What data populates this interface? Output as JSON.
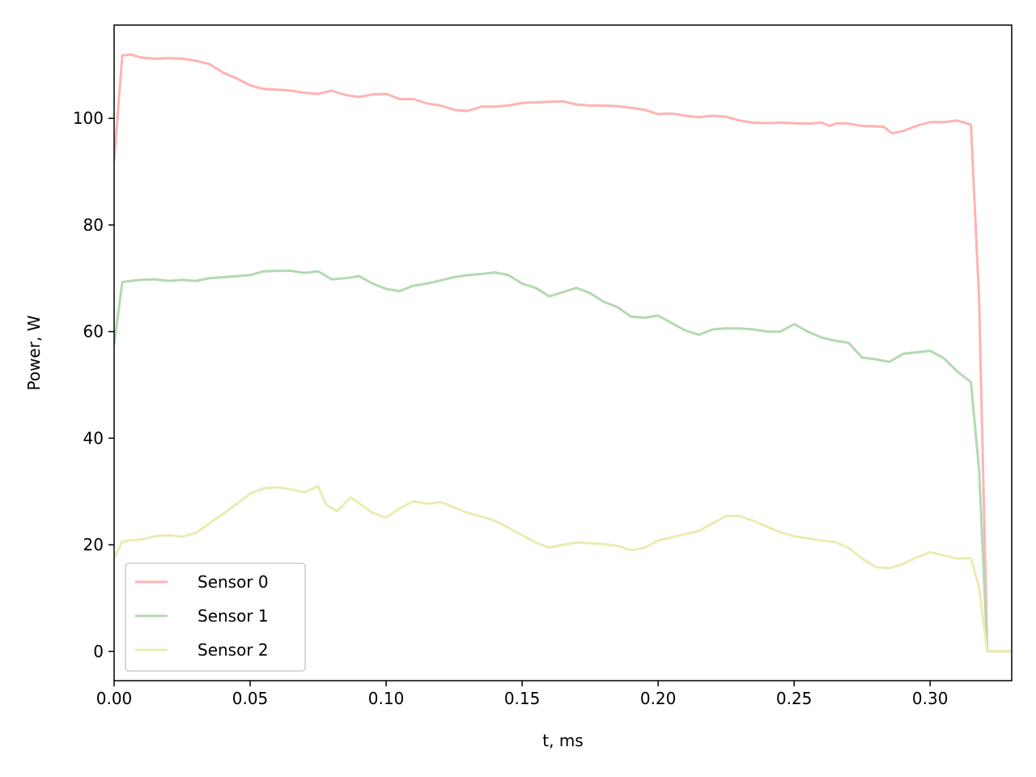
{
  "chart_data": {
    "type": "line",
    "title": "",
    "xlabel": "t, ms",
    "ylabel": "Power, W",
    "xlim": [
      0,
      0.33
    ],
    "ylim": [
      -5.5,
      117.5
    ],
    "xticks": [
      "0.00",
      "0.05",
      "0.10",
      "0.15",
      "0.20",
      "0.25",
      "0.30"
    ],
    "yticks": [
      "0",
      "20",
      "40",
      "60",
      "80",
      "100"
    ],
    "grid": false,
    "legend_position": "lower-left",
    "series": [
      {
        "name": "Sensor 0",
        "color": "#ffb3b3",
        "points": [
          [
            0,
            92
          ],
          [
            0.003,
            111.8
          ],
          [
            0.006,
            112
          ],
          [
            0.01,
            111.4
          ],
          [
            0.015,
            111.2
          ],
          [
            0.02,
            111.3
          ],
          [
            0.025,
            111.2
          ],
          [
            0.03,
            110.8
          ],
          [
            0.035,
            110.2
          ],
          [
            0.04,
            108.6
          ],
          [
            0.045,
            107.5
          ],
          [
            0.05,
            106.2
          ],
          [
            0.055,
            105.5
          ],
          [
            0.06,
            105.4
          ],
          [
            0.065,
            105.2
          ],
          [
            0.07,
            104.8
          ],
          [
            0.075,
            104.6
          ],
          [
            0.08,
            105.2
          ],
          [
            0.085,
            104.4
          ],
          [
            0.09,
            104
          ],
          [
            0.095,
            104.5
          ],
          [
            0.1,
            104.6
          ],
          [
            0.105,
            103.6
          ],
          [
            0.11,
            103.6
          ],
          [
            0.115,
            102.8
          ],
          [
            0.12,
            102.4
          ],
          [
            0.125,
            101.6
          ],
          [
            0.13,
            101.4
          ],
          [
            0.135,
            102.2
          ],
          [
            0.14,
            102.2
          ],
          [
            0.145,
            102.4
          ],
          [
            0.15,
            102.9
          ],
          [
            0.155,
            103
          ],
          [
            0.16,
            103.1
          ],
          [
            0.165,
            103.2
          ],
          [
            0.17,
            102.6
          ],
          [
            0.175,
            102.4
          ],
          [
            0.18,
            102.4
          ],
          [
            0.185,
            102.3
          ],
          [
            0.19,
            102
          ],
          [
            0.195,
            101.6
          ],
          [
            0.2,
            100.8
          ],
          [
            0.205,
            100.9
          ],
          [
            0.21,
            100.5
          ],
          [
            0.215,
            100.2
          ],
          [
            0.22,
            100.5
          ],
          [
            0.225,
            100.3
          ],
          [
            0.23,
            99.6
          ],
          [
            0.235,
            99.2
          ],
          [
            0.24,
            99.1
          ],
          [
            0.245,
            99.2
          ],
          [
            0.25,
            99.1
          ],
          [
            0.255,
            99
          ],
          [
            0.26,
            99.2
          ],
          [
            0.263,
            98.6
          ],
          [
            0.266,
            99.1
          ],
          [
            0.27,
            99
          ],
          [
            0.275,
            98.6
          ],
          [
            0.28,
            98.5
          ],
          [
            0.283,
            98.4
          ],
          [
            0.286,
            97.2
          ],
          [
            0.29,
            97.6
          ],
          [
            0.295,
            98.6
          ],
          [
            0.3,
            99.3
          ],
          [
            0.305,
            99.3
          ],
          [
            0.31,
            99.6
          ],
          [
            0.315,
            98.8
          ],
          [
            0.318,
            66
          ],
          [
            0.321,
            0
          ],
          [
            0.33,
            0
          ]
        ]
      },
      {
        "name": "Sensor 1",
        "color": "#b3d9b3",
        "points": [
          [
            0,
            57.5
          ],
          [
            0.003,
            69.3
          ],
          [
            0.006,
            69.5
          ],
          [
            0.01,
            69.7
          ],
          [
            0.015,
            69.8
          ],
          [
            0.02,
            69.5
          ],
          [
            0.025,
            69.7
          ],
          [
            0.03,
            69.5
          ],
          [
            0.035,
            70
          ],
          [
            0.04,
            70.2
          ],
          [
            0.045,
            70.4
          ],
          [
            0.05,
            70.6
          ],
          [
            0.055,
            71.3
          ],
          [
            0.06,
            71.4
          ],
          [
            0.065,
            71.4
          ],
          [
            0.07,
            71
          ],
          [
            0.075,
            71.3
          ],
          [
            0.08,
            69.8
          ],
          [
            0.085,
            70
          ],
          [
            0.09,
            70.4
          ],
          [
            0.095,
            69
          ],
          [
            0.1,
            68
          ],
          [
            0.105,
            67.6
          ],
          [
            0.11,
            68.6
          ],
          [
            0.115,
            69
          ],
          [
            0.12,
            69.6
          ],
          [
            0.125,
            70.2
          ],
          [
            0.13,
            70.6
          ],
          [
            0.135,
            70.8
          ],
          [
            0.14,
            71.1
          ],
          [
            0.145,
            70.6
          ],
          [
            0.15,
            69
          ],
          [
            0.155,
            68.2
          ],
          [
            0.16,
            66.6
          ],
          [
            0.165,
            67.4
          ],
          [
            0.17,
            68.2
          ],
          [
            0.175,
            67.2
          ],
          [
            0.18,
            65.6
          ],
          [
            0.185,
            64.6
          ],
          [
            0.19,
            62.8
          ],
          [
            0.195,
            62.6
          ],
          [
            0.2,
            63
          ],
          [
            0.205,
            61.6
          ],
          [
            0.21,
            60.2
          ],
          [
            0.215,
            59.4
          ],
          [
            0.22,
            60.4
          ],
          [
            0.225,
            60.6
          ],
          [
            0.23,
            60.6
          ],
          [
            0.235,
            60.4
          ],
          [
            0.24,
            60
          ],
          [
            0.245,
            60
          ],
          [
            0.25,
            61.4
          ],
          [
            0.255,
            60
          ],
          [
            0.26,
            58.9
          ],
          [
            0.265,
            58.3
          ],
          [
            0.27,
            57.9
          ],
          [
            0.275,
            55.1
          ],
          [
            0.28,
            54.8
          ],
          [
            0.285,
            54.3
          ],
          [
            0.29,
            55.8
          ],
          [
            0.295,
            56.1
          ],
          [
            0.3,
            56.4
          ],
          [
            0.305,
            55
          ],
          [
            0.31,
            52.5
          ],
          [
            0.315,
            50.5
          ],
          [
            0.318,
            34
          ],
          [
            0.321,
            0
          ],
          [
            0.33,
            0
          ]
        ]
      },
      {
        "name": "Sensor 2",
        "color": "#ebebb3",
        "points": [
          [
            0,
            17.5
          ],
          [
            0.003,
            20.6
          ],
          [
            0.006,
            20.8
          ],
          [
            0.01,
            21
          ],
          [
            0.015,
            21.6
          ],
          [
            0.02,
            21.8
          ],
          [
            0.025,
            21.5
          ],
          [
            0.03,
            22.2
          ],
          [
            0.035,
            24
          ],
          [
            0.04,
            25.8
          ],
          [
            0.045,
            27.6
          ],
          [
            0.05,
            29.6
          ],
          [
            0.055,
            30.6
          ],
          [
            0.06,
            30.8
          ],
          [
            0.065,
            30.4
          ],
          [
            0.07,
            29.8
          ],
          [
            0.075,
            31
          ],
          [
            0.078,
            27.5
          ],
          [
            0.082,
            26.3
          ],
          [
            0.087,
            28.9
          ],
          [
            0.09,
            27.8
          ],
          [
            0.095,
            26
          ],
          [
            0.1,
            25.1
          ],
          [
            0.105,
            26.8
          ],
          [
            0.11,
            28.2
          ],
          [
            0.115,
            27.7
          ],
          [
            0.12,
            28
          ],
          [
            0.125,
            27
          ],
          [
            0.13,
            26
          ],
          [
            0.135,
            25.3
          ],
          [
            0.14,
            24.5
          ],
          [
            0.145,
            23.2
          ],
          [
            0.15,
            21.8
          ],
          [
            0.155,
            20.4
          ],
          [
            0.16,
            19.5
          ],
          [
            0.165,
            20
          ],
          [
            0.17,
            20.4
          ],
          [
            0.175,
            20.3
          ],
          [
            0.18,
            20.1
          ],
          [
            0.185,
            19.8
          ],
          [
            0.19,
            19
          ],
          [
            0.195,
            19.4
          ],
          [
            0.2,
            20.8
          ],
          [
            0.205,
            21.4
          ],
          [
            0.21,
            22
          ],
          [
            0.215,
            22.6
          ],
          [
            0.22,
            24
          ],
          [
            0.225,
            25.4
          ],
          [
            0.23,
            25.4
          ],
          [
            0.235,
            24.5
          ],
          [
            0.24,
            23.4
          ],
          [
            0.245,
            22.3
          ],
          [
            0.25,
            21.6
          ],
          [
            0.255,
            21.2
          ],
          [
            0.26,
            20.8
          ],
          [
            0.265,
            20.5
          ],
          [
            0.27,
            19.4
          ],
          [
            0.275,
            17.4
          ],
          [
            0.28,
            15.8
          ],
          [
            0.285,
            15.6
          ],
          [
            0.29,
            16.4
          ],
          [
            0.295,
            17.6
          ],
          [
            0.3,
            18.6
          ],
          [
            0.305,
            18
          ],
          [
            0.31,
            17.4
          ],
          [
            0.315,
            17.5
          ],
          [
            0.318,
            12
          ],
          [
            0.321,
            0
          ],
          [
            0.33,
            0
          ]
        ]
      }
    ]
  }
}
